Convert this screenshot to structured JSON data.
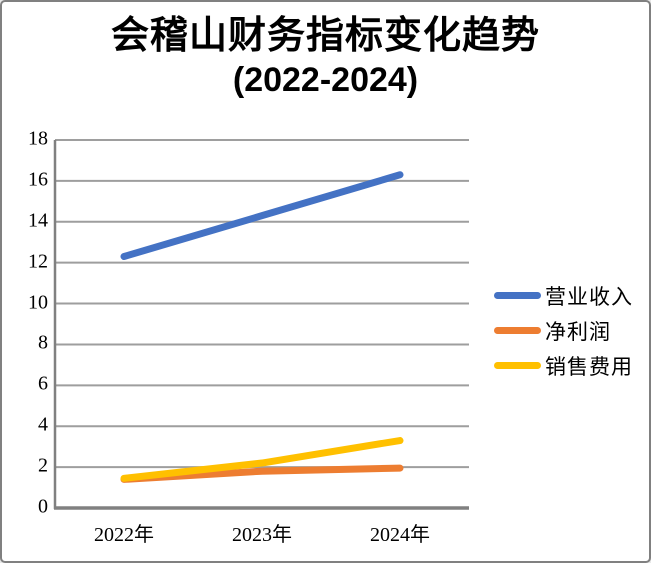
{
  "window": {
    "background": "#ffffff",
    "border_color": "#808080"
  },
  "chart_data": {
    "type": "line",
    "title": "会稽山财务指标变化趋势",
    "subtitle": "(2022-2024)",
    "categories": [
      "2022年",
      "2023年",
      "2024年"
    ],
    "series": [
      {
        "name": "营业收入",
        "color": "#4472C4",
        "values": [
          12.3,
          14.3,
          16.3
        ]
      },
      {
        "name": "净利润",
        "color": "#ED7D31",
        "values": [
          1.4,
          1.8,
          1.95
        ]
      },
      {
        "name": "销售费用",
        "color": "#FFC000",
        "values": [
          1.45,
          2.2,
          3.3
        ]
      }
    ],
    "ylim": [
      0,
      18
    ],
    "yticks": [
      0,
      2,
      4,
      6,
      8,
      10,
      12,
      14,
      16,
      18
    ],
    "xlabel": "",
    "ylabel": "",
    "grid": "horizontal",
    "grid_color": "#9E9E9E",
    "axis_color": "#808080",
    "legend_position": "right",
    "line_width": 7
  }
}
